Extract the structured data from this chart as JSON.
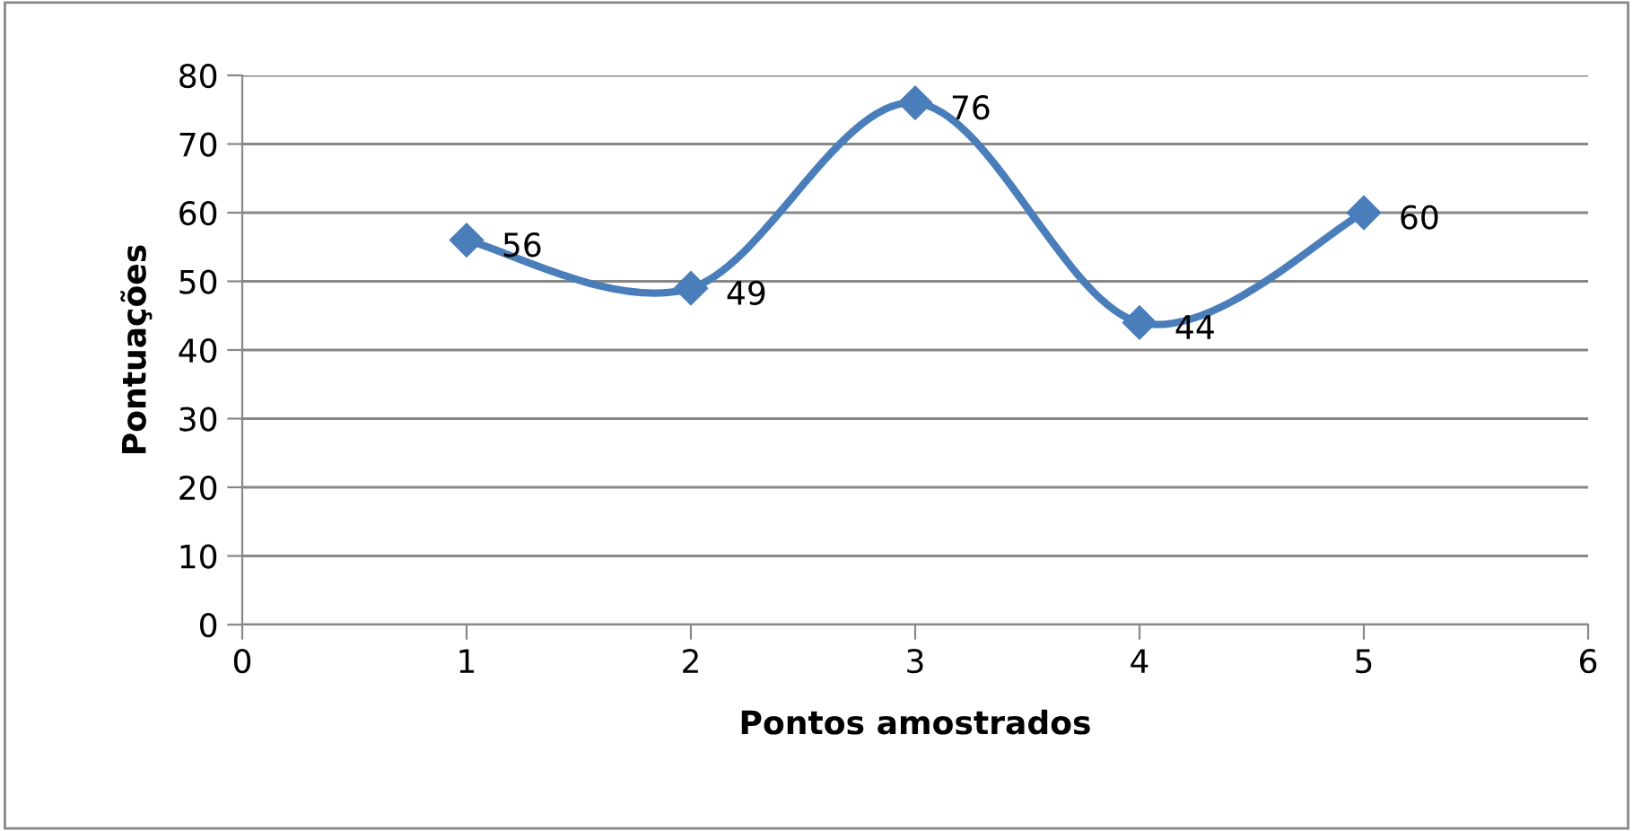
{
  "chart_data": {
    "type": "line",
    "xlabel": "Pontos amostrados",
    "ylabel": "Pontuações",
    "x": [
      1,
      2,
      3,
      4,
      5
    ],
    "series": [
      {
        "color": "#4a7ebb",
        "values": [
          56,
          49,
          76,
          44,
          60
        ]
      }
    ],
    "xlim": [
      0,
      6
    ],
    "xticks": [
      0,
      1,
      2,
      3,
      4,
      5,
      6
    ],
    "ylim": [
      0,
      80
    ],
    "yticks": [
      0,
      10,
      20,
      30,
      40,
      50,
      60,
      70,
      80
    ],
    "grid": "y",
    "marker": "diamond",
    "line_style": "solid",
    "data_labels": true,
    "legend": false
  }
}
